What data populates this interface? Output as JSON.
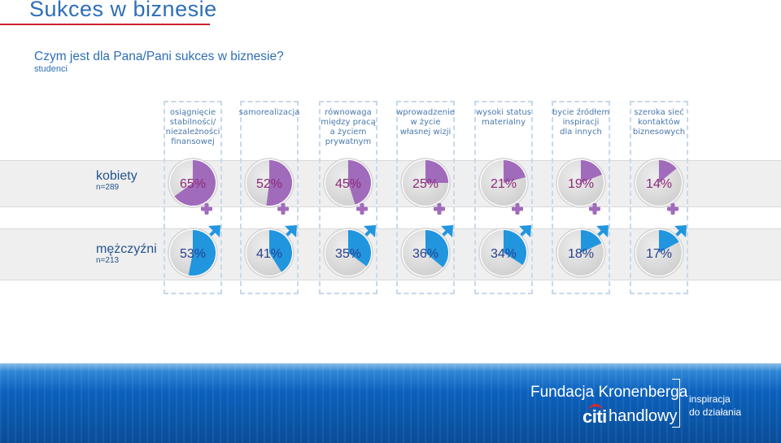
{
  "header": {
    "title": "Sukces w biznesie",
    "question": "Czym jest dla Pana/Pani sukces w biznesie?",
    "subtitle": "studenci"
  },
  "colors": {
    "women": "#a16bbb",
    "men": "#2196df",
    "remainder": "#cfcfcf",
    "value_women": "#8c2a77",
    "value_men": "#2a3f8c",
    "accent_red": "#c8202f"
  },
  "chart_data": {
    "type": "pie",
    "categories": [
      "osiągnięcie stabilności/ niezależności finansowej",
      "samorealizacja",
      "równowaga między pracą a życiem prywatnym",
      "wprowadzenie w życie własnej wizji",
      "wysoki status materialny",
      "bycie źródłem inspiracji dla innych",
      "szeroka sieć kontaktów biznesowych"
    ],
    "category_lines": [
      [
        "osiągnięcie",
        "stabilności/",
        "niezależności",
        "finansowej"
      ],
      [
        "samorealizacja"
      ],
      [
        "równowaga",
        "między pracą",
        "a życiem",
        "prywatnym"
      ],
      [
        "wprowadzenie",
        "w życie",
        "własnej wizji"
      ],
      [
        "wysoki status",
        "materialny"
      ],
      [
        "bycie źródłem",
        "inspiracji",
        "dla innych"
      ],
      [
        "szeroka sieć",
        "kontaktów",
        "biznesowych"
      ]
    ],
    "unit": "%",
    "series": [
      {
        "name": "kobiety",
        "n": "n=289",
        "icon": "female-symbol",
        "values": [
          65,
          52,
          45,
          25,
          21,
          19,
          14
        ]
      },
      {
        "name": "mężczyźni",
        "n": "n=213",
        "icon": "male-symbol",
        "values": [
          53,
          41,
          35,
          36,
          34,
          18,
          17
        ]
      }
    ]
  },
  "footer": {
    "org": "Fundacja Kronenberga",
    "logo": "citi",
    "bank": "handlowy",
    "tagline_1": "inspiracja",
    "tagline_2": "do działania"
  }
}
